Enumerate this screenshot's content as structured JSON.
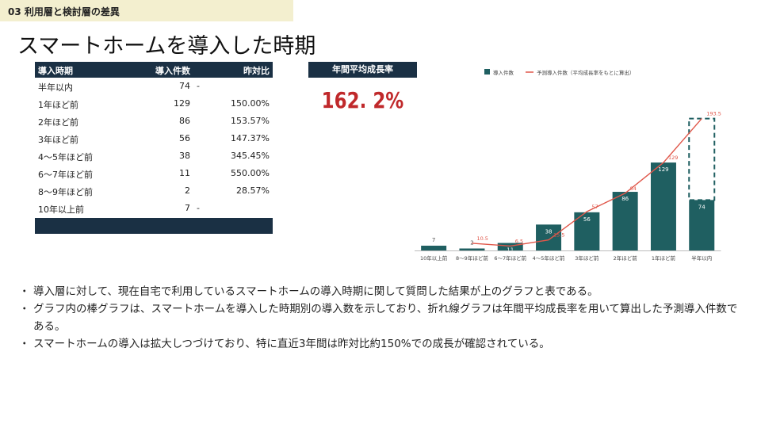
{
  "section_label": "03 利用層と検討層の差異",
  "title": "スマートホームを導入した時期",
  "table": {
    "headers": [
      "導入時期",
      "導入件数",
      "昨対比"
    ],
    "rows": [
      [
        "半年以内",
        "74",
        "-"
      ],
      [
        "1年ほど前",
        "129",
        "150.00%"
      ],
      [
        "2年ほど前",
        "86",
        "153.57%"
      ],
      [
        "3年ほど前",
        "56",
        "147.37%"
      ],
      [
        "4〜5年ほど前",
        "38",
        "345.45%"
      ],
      [
        "6〜7年ほど前",
        "11",
        "550.00%"
      ],
      [
        "8〜9年ほど前",
        "2",
        "28.57%"
      ],
      [
        "10年以上前",
        "7",
        "-"
      ]
    ]
  },
  "growth": {
    "label": "年間平均成長率",
    "value": "162. 2%"
  },
  "colors": {
    "bar": "#1f5f61",
    "line": "#e0574a",
    "header": "#1a3044",
    "highlight": "#c0292b"
  },
  "chart_data": {
    "type": "bar",
    "categories": [
      "10年以上前",
      "8〜9年ほど前",
      "6〜7年ほど前",
      "4〜5年ほど前",
      "3年ほど前",
      "2年ほど前",
      "1年ほど前",
      "半年以内"
    ],
    "series": [
      {
        "name": "導入件数",
        "type": "bar",
        "values": [
          7,
          2,
          11,
          38,
          56,
          86,
          129,
          74
        ]
      },
      {
        "name": "予測導入件数（平均成長率をもとに算出）",
        "type": "line",
        "values": [
          null,
          10.5,
          6.5,
          15.5,
          57,
          84,
          129,
          193.5
        ]
      }
    ],
    "bar_labels": [
      "7",
      "2",
      "11",
      "38",
      "56",
      "86",
      "129",
      "74"
    ],
    "line_labels": [
      "",
      "10.5",
      "6.5",
      "15.5",
      "57",
      "84",
      "129",
      "193.5"
    ],
    "projected_bar": {
      "category": "半年以内",
      "value": 193.5
    },
    "legend_position": "top",
    "ylim": [
      0,
      200
    ],
    "grid": false
  },
  "notes": [
    "導入層に対して、現在自宅で利用しているスマートホームの導入時期に関して質問した結果が上のグラフと表である。",
    "グラフ内の棒グラフは、スマートホームを導入した時期別の導入数を示しており、折れ線グラフは年間平均成長率を用いて算出した予測導入件数である。",
    "スマートホームの導入は拡大しつづけており、特に直近3年間は昨対比約150%での成長が確認されている。"
  ]
}
